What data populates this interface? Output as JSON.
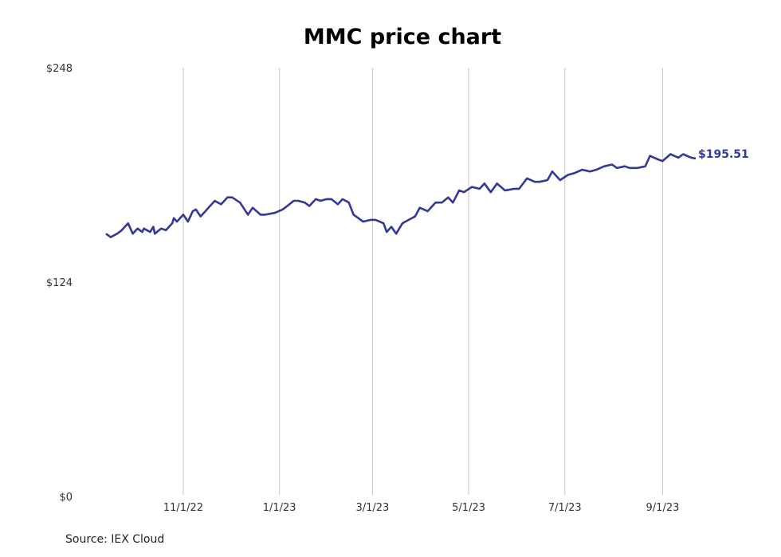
{
  "chart_data": {
    "type": "line",
    "title": "MMC price chart",
    "source": "Source: IEX Cloud",
    "xlabel": "",
    "ylabel": "",
    "x_range": [
      "2022-09-13",
      "2023-09-22"
    ],
    "y_range": [
      0,
      248
    ],
    "y_ticks": [
      {
        "value": 0,
        "label": "$0"
      },
      {
        "value": 124,
        "label": "$124"
      },
      {
        "value": 248,
        "label": "$248"
      }
    ],
    "x_ticks": [
      {
        "date": "2022-11-01",
        "label": "11/1/22"
      },
      {
        "date": "2023-01-01",
        "label": "1/1/23"
      },
      {
        "date": "2023-03-01",
        "label": "3/1/23"
      },
      {
        "date": "2023-05-01",
        "label": "5/1/23"
      },
      {
        "date": "2023-07-01",
        "label": "7/1/23"
      },
      {
        "date": "2023-09-01",
        "label": "9/1/23"
      }
    ],
    "grid": {
      "vertical": true,
      "horizontal": false
    },
    "colors": {
      "line": "#343896",
      "grid": "#c8c8c8",
      "last_label": "#343896"
    },
    "last_value_label": "$195.51",
    "series": [
      {
        "x": [
          "2022-09-13",
          "2022-09-16",
          "2022-09-20",
          "2022-09-23",
          "2022-09-27",
          "2022-09-30",
          "2022-10-03",
          "2022-10-06",
          "2022-10-07",
          "2022-10-11",
          "2022-10-13",
          "2022-10-14",
          "2022-10-18",
          "2022-10-21",
          "2022-10-25",
          "2022-10-26",
          "2022-10-28",
          "2022-11-01",
          "2022-11-04",
          "2022-11-07",
          "2022-11-09",
          "2022-11-12",
          "2022-11-15",
          "2022-11-17",
          "2022-11-21",
          "2022-11-25",
          "2022-11-29",
          "2022-12-02",
          "2022-12-07",
          "2022-12-12",
          "2022-12-15",
          "2022-12-20",
          "2022-12-23",
          "2022-12-29",
          "2023-01-03",
          "2023-01-06",
          "2023-01-10",
          "2023-01-13",
          "2023-01-17",
          "2023-01-20",
          "2023-01-24",
          "2023-01-27",
          "2023-01-31",
          "2023-02-03",
          "2023-02-07",
          "2023-02-10",
          "2023-02-14",
          "2023-02-17",
          "2023-02-20",
          "2023-02-23",
          "2023-02-28",
          "2023-03-03",
          "2023-03-08",
          "2023-03-10",
          "2023-03-13",
          "2023-03-16",
          "2023-03-20",
          "2023-03-24",
          "2023-03-28",
          "2023-03-31",
          "2023-04-05",
          "2023-04-10",
          "2023-04-14",
          "2023-04-18",
          "2023-04-21",
          "2023-04-25",
          "2023-04-28",
          "2023-05-03",
          "2023-05-08",
          "2023-05-11",
          "2023-05-15",
          "2023-05-19",
          "2023-05-24",
          "2023-05-30",
          "2023-06-02",
          "2023-06-07",
          "2023-06-12",
          "2023-06-15",
          "2023-06-20",
          "2023-06-23",
          "2023-06-28",
          "2023-07-03",
          "2023-07-07",
          "2023-07-12",
          "2023-07-17",
          "2023-07-21",
          "2023-07-26",
          "2023-07-31",
          "2023-08-03",
          "2023-08-08",
          "2023-08-11",
          "2023-08-16",
          "2023-08-21",
          "2023-08-24",
          "2023-08-29",
          "2023-09-01",
          "2023-09-06",
          "2023-09-11",
          "2023-09-14",
          "2023-09-19",
          "2023-09-22"
        ],
        "y": [
          152,
          150,
          152,
          154,
          158,
          152,
          155,
          153,
          155,
          153,
          156,
          152,
          155,
          154,
          158,
          161,
          159,
          163,
          159,
          165,
          166,
          162,
          165,
          167,
          171,
          169,
          173,
          173,
          170,
          163,
          167,
          163,
          163,
          164,
          166,
          168,
          171,
          171,
          170,
          168,
          172,
          171,
          172,
          172,
          169,
          172,
          170,
          163,
          161,
          159,
          160,
          160,
          158,
          153,
          156,
          152,
          158,
          160,
          162,
          167,
          165,
          170,
          170,
          173,
          170,
          177,
          176,
          179,
          178,
          181,
          176,
          181,
          177,
          178,
          178,
          184,
          182,
          182,
          183,
          188,
          183,
          186,
          187,
          189,
          188,
          189,
          191,
          192,
          190,
          191,
          190,
          190,
          191,
          197,
          195,
          194,
          198,
          196,
          198,
          196,
          195.51
        ]
      }
    ]
  }
}
